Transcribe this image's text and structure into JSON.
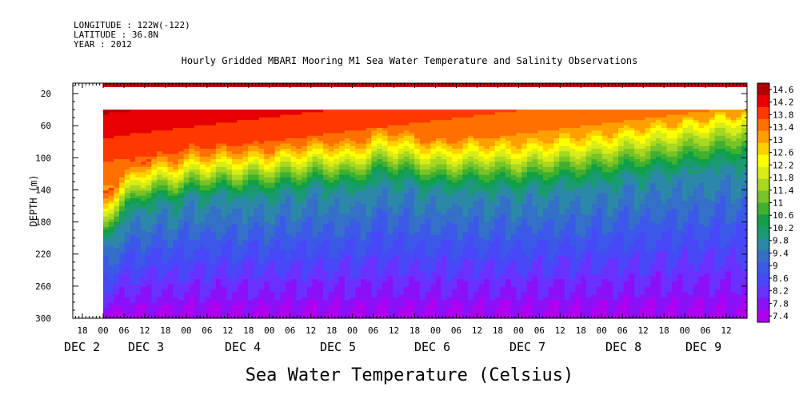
{
  "header": {
    "longitude": "LONGITUDE : 122W(-122)",
    "latitude": "LATITUDE : 36.8N",
    "year": "YEAR : 2012",
    "title": "Hourly Gridded MBARI Mooring M1 Sea Water Temperature and Salinity Observations"
  },
  "chart_data": {
    "type": "heatmap",
    "title": "Hourly Gridded MBARI Mooring M1 Sea Water Temperature and Salinity Observations",
    "xlabel": "",
    "ylabel": "DEPTH (m)",
    "colorbar_label": "Sea Water Temperature (Celsius)",
    "y_ticks": [
      20,
      60,
      100,
      140,
      180,
      220,
      260,
      300
    ],
    "y_range": [
      0,
      300
    ],
    "y_inverted": true,
    "x_hour_ticks": [
      "18",
      "00",
      "06",
      "12",
      "18",
      "00",
      "06",
      "12",
      "18",
      "00",
      "06",
      "12",
      "18",
      "00",
      "06",
      "12",
      "18",
      "00",
      "06",
      "12",
      "18",
      "00",
      "06",
      "12",
      "18",
      "00",
      "06",
      "12",
      "18",
      "00",
      "06",
      "12"
    ],
    "x_day_labels": [
      "DEC  2",
      "DEC  3",
      "DEC  4",
      "DEC  5",
      "DEC  6",
      "DEC  7",
      "DEC  8",
      "DEC  9"
    ],
    "colorbar_ticks": [
      "14.6",
      "14.2",
      "13.8",
      "13.4",
      "13",
      "12.6",
      "12.2",
      "11.8",
      "11.4",
      "11",
      "10.6",
      "10.2",
      "9.8",
      "9.4",
      "9",
      "8.6",
      "8.2",
      "7.8",
      "7.4"
    ],
    "colorbar_range": [
      7.4,
      14.6
    ],
    "data_gap_depth": [
      12,
      40
    ],
    "thermocline_depth_by_day": [
      {
        "day": "DEC 2 00",
        "depth": 170
      },
      {
        "day": "DEC 2 12",
        "depth": 130
      },
      {
        "day": "DEC 3 00",
        "depth": 120
      },
      {
        "day": "DEC 4 00",
        "depth": 115
      },
      {
        "day": "DEC 5 00",
        "depth": 110
      },
      {
        "day": "DEC 6 00",
        "depth": 110
      },
      {
        "day": "DEC 7 00",
        "depth": 100
      },
      {
        "day": "DEC 8 00",
        "depth": 90
      },
      {
        "day": "DEC 9 00",
        "depth": 75
      }
    ],
    "surface_temp_range": [
      12.6,
      14.6
    ],
    "bottom_temp_range": [
      7.4,
      8.2
    ]
  }
}
